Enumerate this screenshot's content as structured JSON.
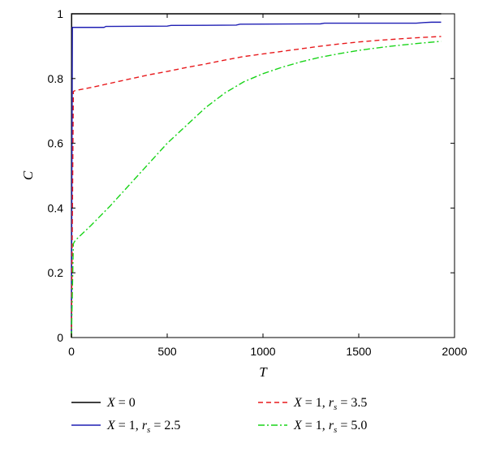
{
  "chart_data": {
    "type": "line",
    "xlabel": "T",
    "ylabel": "C",
    "xlim": [
      0,
      2000
    ],
    "ylim": [
      0,
      1
    ],
    "x_ticks": [
      0,
      500,
      1000,
      1500,
      2000
    ],
    "y_ticks": [
      0,
      0.2,
      0.4,
      0.6,
      0.8,
      1
    ],
    "grid": false,
    "legend_placement": "bottom",
    "series": [
      {
        "name": "X = 0",
        "legend": {
          "a": "X",
          "b": " = 0"
        },
        "color": "#000000",
        "style": "solid",
        "x": [
          0,
          1,
          1930
        ],
        "y": [
          0,
          1.0,
          1.0
        ]
      },
      {
        "name": "X = 1, r_s = 2.5",
        "legend": {
          "a": "X",
          "b": " = 1, ",
          "c": "r",
          "d": "s",
          "e": " = 2.5"
        },
        "color": "#1f1fb4",
        "style": "solid",
        "x": [
          0,
          5,
          10,
          170,
          180,
          500,
          520,
          860,
          880,
          1300,
          1320,
          1800,
          1840,
          1880,
          1930
        ],
        "y": [
          0,
          0.958,
          0.958,
          0.958,
          0.961,
          0.962,
          0.964,
          0.965,
          0.968,
          0.969,
          0.971,
          0.971,
          0.973,
          0.974,
          0.974
        ]
      },
      {
        "name": "X = 1, r_s = 3.5",
        "legend": {
          "a": "X",
          "b": " = 1, ",
          "c": "r",
          "d": "s",
          "e": " = 3.5"
        },
        "color": "#e8191c",
        "style": "dashed",
        "x": [
          0,
          10,
          20,
          100,
          200,
          300,
          400,
          500,
          600,
          700,
          800,
          900,
          1000,
          1100,
          1200,
          1300,
          1400,
          1500,
          1600,
          1700,
          1800,
          1930
        ],
        "y": [
          0,
          0.76,
          0.763,
          0.772,
          0.785,
          0.798,
          0.811,
          0.822,
          0.834,
          0.845,
          0.857,
          0.868,
          0.876,
          0.884,
          0.892,
          0.9,
          0.907,
          0.913,
          0.918,
          0.922,
          0.926,
          0.93
        ]
      },
      {
        "name": "X = 1, r_s = 5.0",
        "legend": {
          "a": "X",
          "b": " = 1, ",
          "c": "r",
          "d": "s",
          "e": " = 5.0"
        },
        "color": "#19d419",
        "style": "dashdot",
        "x": [
          0,
          10,
          20,
          100,
          200,
          300,
          400,
          500,
          600,
          700,
          800,
          900,
          1000,
          1100,
          1200,
          1300,
          1400,
          1500,
          1600,
          1700,
          1800,
          1930
        ],
        "y": [
          0,
          0.29,
          0.3,
          0.345,
          0.405,
          0.47,
          0.535,
          0.6,
          0.655,
          0.71,
          0.755,
          0.79,
          0.815,
          0.835,
          0.852,
          0.866,
          0.877,
          0.887,
          0.895,
          0.902,
          0.908,
          0.915
        ]
      }
    ]
  }
}
